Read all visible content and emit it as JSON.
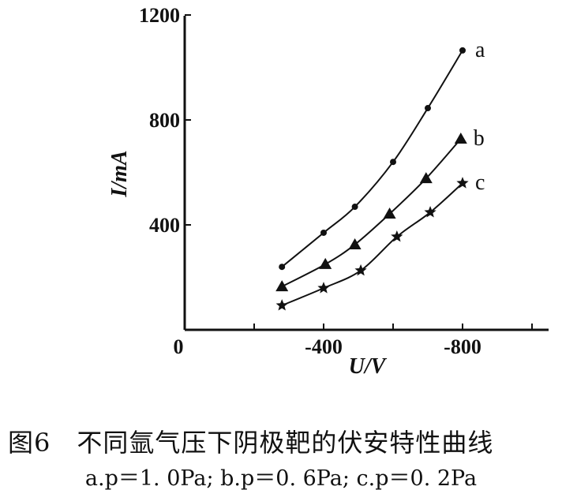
{
  "chart_data": {
    "type": "line",
    "title": "图6　不同氩气压下阴极靶的伏安特性曲线",
    "subtitle": "a.p＝1. 0Pa; b.p＝0. 6Pa; c.p＝0. 2Pa",
    "xlabel": "U/V",
    "ylabel": "I/mA",
    "xlim": [
      0,
      -1050
    ],
    "ylim": [
      0,
      1200
    ],
    "x_ticks": [
      {
        "v": 0,
        "label": "0"
      },
      {
        "v": -200,
        "label": ""
      },
      {
        "v": -400,
        "label": "-400"
      },
      {
        "v": -600,
        "label": ""
      },
      {
        "v": -800,
        "label": "-800"
      },
      {
        "v": -1000,
        "label": ""
      }
    ],
    "y_ticks": [
      {
        "v": 400,
        "label": "400"
      },
      {
        "v": 800,
        "label": "800"
      },
      {
        "v": 1200,
        "label": "1200"
      }
    ],
    "grid": false,
    "series": [
      {
        "name": "a",
        "marker": "dot",
        "points": [
          [
            -280,
            240
          ],
          [
            -400,
            370
          ],
          [
            -490,
            469
          ],
          [
            -600,
            640
          ],
          [
            -700,
            845
          ],
          [
            -800,
            1065
          ]
        ]
      },
      {
        "name": "b",
        "marker": "triangle",
        "points": [
          [
            -280,
            165
          ],
          [
            -405,
            250
          ],
          [
            -490,
            325
          ],
          [
            -590,
            442
          ],
          [
            -695,
            577
          ],
          [
            -795,
            728
          ]
        ]
      },
      {
        "name": "c",
        "marker": "star",
        "points": [
          [
            -280,
            93
          ],
          [
            -400,
            159
          ],
          [
            -507,
            226
          ],
          [
            -611,
            355
          ],
          [
            -707,
            448
          ],
          [
            -800,
            559
          ]
        ]
      }
    ]
  }
}
